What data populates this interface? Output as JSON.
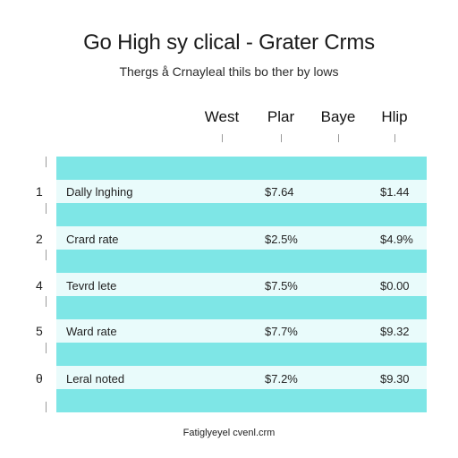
{
  "header": {
    "title": "Go High sy clical - Grater Crms",
    "subtitle": "Thergs å Crnayleal thils bo ther by lows"
  },
  "table": {
    "columns": [
      "West",
      "Plar",
      "Baye",
      "Hlip"
    ],
    "rows": [
      {
        "num": "1",
        "label": "Dally lnghing",
        "val1": "$7.64",
        "val2": "$1.44"
      },
      {
        "num": "2",
        "label": "Crard rate",
        "val1": "$2.5%",
        "val2": "$4.9%"
      },
      {
        "num": "4",
        "label": "Tevrd lete",
        "val1": "$7.5%",
        "val2": "$0.00"
      },
      {
        "num": "5",
        "label": "Ward rate",
        "val1": "$7.7%",
        "val2": "$9.32"
      },
      {
        "num": "θ",
        "label": "Leral noted",
        "val1": "$7.2%",
        "val2": "$9.30"
      }
    ]
  },
  "footer": {
    "text": "Fatiglyeyel cvenl.crm"
  },
  "colors": {
    "band_dark": "#7ee6e6",
    "band_light": "#e9fbfb"
  }
}
